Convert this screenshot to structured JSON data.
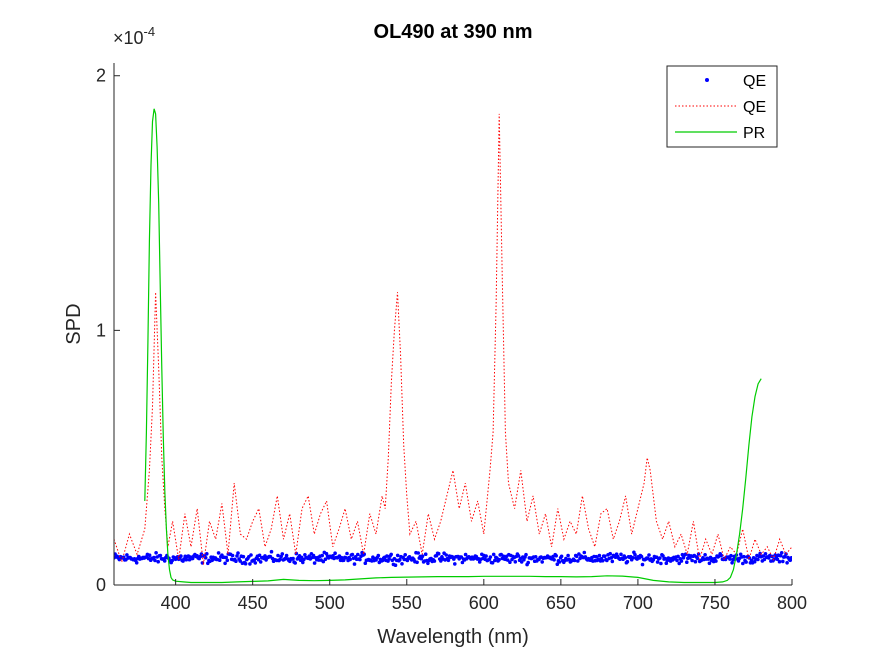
{
  "chart_data": {
    "type": "line",
    "title": "OL490 at 390 nm",
    "xlabel": "Wavelength (nm)",
    "ylabel": "SPD",
    "xlim": [
      360,
      800
    ],
    "ylim": [
      0,
      0.000205
    ],
    "y_exponent_label": "×10",
    "y_exponent_power": "-4",
    "x_ticks": [
      400,
      450,
      500,
      550,
      600,
      650,
      700,
      750,
      800
    ],
    "x_tick_labels": [
      "400",
      "450",
      "500",
      "550",
      "600",
      "650",
      "700",
      "750",
      "800"
    ],
    "y_ticks": [
      0,
      0.0001,
      0.0002
    ],
    "y_tick_labels": [
      "0",
      "1",
      "2"
    ],
    "grid": false,
    "legend_position": "top-right",
    "colors": {
      "qe_markers": "#0000ff",
      "qe_dotted": "#ff0000",
      "pr_line": "#00cc00",
      "axis": "#262626"
    },
    "series": [
      {
        "name": "QE",
        "style": "markers",
        "x_range": [
          360,
          800
        ],
        "mean": 1.05e-05,
        "spread": 1.6e-06,
        "x_step": 0.7
      },
      {
        "name": "QE",
        "style": "dotted",
        "x": [
          360,
          365,
          370,
          375,
          380,
          383,
          385,
          387,
          389,
          391,
          393,
          395,
          398,
          402,
          406,
          410,
          414,
          418,
          422,
          426,
          430,
          434,
          438,
          442,
          446,
          450,
          454,
          458,
          462,
          466,
          470,
          474,
          478,
          482,
          486,
          490,
          494,
          498,
          502,
          506,
          510,
          514,
          518,
          522,
          526,
          530,
          534,
          536,
          538,
          540,
          542,
          544,
          546,
          548,
          550,
          552,
          556,
          560,
          564,
          568,
          572,
          576,
          580,
          584,
          588,
          592,
          596,
          600,
          604,
          606,
          608,
          610,
          612,
          614,
          616,
          620,
          624,
          628,
          632,
          636,
          640,
          644,
          648,
          652,
          656,
          660,
          664,
          668,
          672,
          676,
          680,
          684,
          688,
          692,
          696,
          700,
          704,
          706,
          708,
          710,
          712,
          716,
          720,
          724,
          728,
          732,
          736,
          740,
          744,
          748,
          752,
          756,
          760,
          764,
          768,
          772,
          776,
          780,
          784,
          788,
          792,
          796,
          800
        ],
        "y": [
          1.8e-05,
          9e-06,
          2e-05,
          1.2e-05,
          2.2e-05,
          4.5e-05,
          7e-05,
          0.000115,
          8.5e-05,
          5e-05,
          3e-05,
          1.5e-05,
          2.5e-05,
          1e-05,
          2.8e-05,
          1.5e-05,
          3e-05,
          8e-06,
          2.5e-05,
          1.8e-05,
          3.2e-05,
          1.2e-05,
          4e-05,
          2e-05,
          1.8e-05,
          2.5e-05,
          3e-05,
          1.5e-05,
          2.2e-05,
          3.5e-05,
          1.8e-05,
          2.8e-05,
          1.2e-05,
          3e-05,
          3.5e-05,
          2e-05,
          2.8e-05,
          3.3e-05,
          1.5e-05,
          2.2e-05,
          3e-05,
          1.8e-05,
          2.5e-05,
          1.2e-05,
          2.8e-05,
          2e-05,
          3.5e-05,
          3e-05,
          5e-05,
          8e-05,
          0.0001,
          0.000115,
          9e-05,
          5.5e-05,
          3.5e-05,
          2e-05,
          2.5e-05,
          1.2e-05,
          2.8e-05,
          1.8e-05,
          2.5e-05,
          3.5e-05,
          4.5e-05,
          3e-05,
          4e-05,
          2.5e-05,
          3.3e-05,
          2e-05,
          4.5e-05,
          6e-05,
          0.00011,
          0.000185,
          0.00012,
          6e-05,
          4e-05,
          3e-05,
          4.5e-05,
          2.5e-05,
          3.5e-05,
          2e-05,
          2.8e-05,
          1.5e-05,
          3e-05,
          1.8e-05,
          2.5e-05,
          2e-05,
          3.5e-05,
          2.2e-05,
          1.5e-05,
          2.8e-05,
          3e-05,
          1.8e-05,
          2.5e-05,
          3.5e-05,
          2e-05,
          3e-05,
          4e-05,
          5e-05,
          4.5e-05,
          3.5e-05,
          2.5e-05,
          1.8e-05,
          2.5e-05,
          1.5e-05,
          2e-05,
          1.2e-05,
          2.5e-05,
          1e-05,
          1.8e-05,
          1.2e-05,
          2e-05,
          1e-05,
          1.5e-05,
          1.2e-05,
          2.2e-05,
          1e-05,
          1.8e-05,
          1.2e-05,
          1.5e-05,
          1e-05,
          1.8e-05,
          1.2e-05,
          1.5e-05
        ]
      },
      {
        "name": "PR",
        "style": "solid",
        "x": [
          380,
          381,
          382,
          383,
          384,
          385,
          386,
          387,
          388,
          389,
          390,
          391,
          392,
          393,
          394,
          395,
          396,
          397,
          398,
          400,
          405,
          410,
          420,
          430,
          440,
          450,
          460,
          470,
          480,
          490,
          500,
          510,
          520,
          530,
          540,
          550,
          560,
          570,
          580,
          590,
          600,
          610,
          620,
          630,
          640,
          650,
          660,
          670,
          680,
          690,
          700,
          710,
          720,
          730,
          740,
          750,
          755,
          758,
          760,
          762,
          764,
          766,
          768,
          770,
          772,
          774,
          776,
          778,
          780
        ],
        "y": [
          3.3e-05,
          6e-05,
          9.5e-05,
          0.000135,
          0.000165,
          0.000182,
          0.000187,
          0.000185,
          0.000172,
          0.00015,
          0.000118,
          8.5e-05,
          5.8e-05,
          3.7e-05,
          2.2e-05,
          1.2e-05,
          6e-06,
          3e-06,
          2e-06,
          1.5e-06,
          1.2e-06,
          1e-06,
          1e-06,
          1e-06,
          1.2e-06,
          1.4e-06,
          1.6e-06,
          2.2e-06,
          1.8e-06,
          1.7e-06,
          1.8e-06,
          2e-06,
          2.4e-06,
          2.8e-06,
          3e-06,
          3.1e-06,
          3.2e-06,
          3.3e-06,
          3.3e-06,
          3.3e-06,
          3.4e-06,
          3.4e-06,
          3.4e-06,
          3.4e-06,
          3.3e-06,
          3.3e-06,
          3.2e-06,
          3.3e-06,
          3.6e-06,
          3.5e-06,
          3e-06,
          1.8e-06,
          1.2e-06,
          1e-06,
          1e-06,
          1e-06,
          1.2e-06,
          1.8e-06,
          3e-06,
          6e-06,
          1.2e-05,
          2e-05,
          3e-05,
          4.2e-05,
          5.5e-05,
          6.6e-05,
          7.4e-05,
          7.9e-05,
          8.1e-05
        ]
      }
    ]
  }
}
